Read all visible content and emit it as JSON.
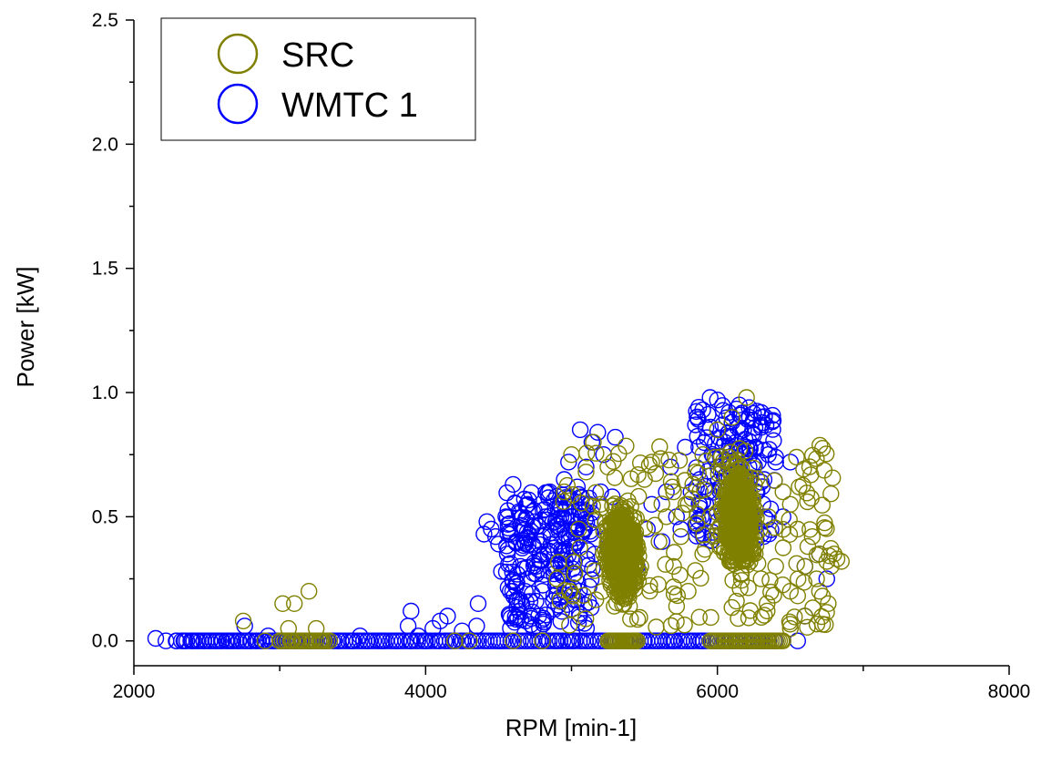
{
  "chart_data": {
    "type": "scatter",
    "xlabel": "RPM [min-1]",
    "ylabel": "Power [kW]",
    "xlim": [
      2000,
      8000
    ],
    "ylim": [
      -0.1,
      2.5
    ],
    "xticks": [
      2000,
      4000,
      6000,
      8000
    ],
    "xtick_labels": [
      "2000",
      "4000",
      "6000",
      "8000"
    ],
    "yticks": [
      0.0,
      0.5,
      1.0,
      1.5,
      2.0,
      2.5
    ],
    "ytick_labels": [
      "0.0",
      "0.5",
      "1.0",
      "1.5",
      "2.0",
      "2.5"
    ],
    "grid": false,
    "legend_position": "top-left",
    "marker": "open-circle",
    "series": [
      {
        "name": "WMTC 1",
        "color": "#0000ff",
        "points": [
          [
            2150,
            0.01
          ],
          [
            2220,
            0.0
          ],
          [
            2290,
            0.0
          ],
          [
            2350,
            0.0
          ],
          [
            2400,
            0.0
          ],
          [
            2440,
            0.0
          ],
          [
            2480,
            0.0
          ],
          [
            2520,
            0.0
          ],
          [
            2560,
            0.0
          ],
          [
            2600,
            0.0
          ],
          [
            2640,
            0.0
          ],
          [
            2680,
            0.0
          ],
          [
            2720,
            0.0
          ],
          [
            2760,
            0.06
          ],
          [
            2800,
            0.0
          ],
          [
            2840,
            0.0
          ],
          [
            2880,
            0.0
          ],
          [
            2920,
            0.02
          ],
          [
            2960,
            0.0
          ],
          [
            3000,
            0.0
          ],
          [
            3050,
            0.0
          ],
          [
            3100,
            0.0
          ],
          [
            3200,
            0.0
          ],
          [
            3300,
            0.0
          ],
          [
            3400,
            0.0
          ],
          [
            3500,
            0.0
          ],
          [
            3550,
            0.02
          ],
          [
            3600,
            0.0
          ],
          [
            3700,
            0.0
          ],
          [
            3800,
            0.0
          ],
          [
            3900,
            0.0
          ],
          [
            3880,
            0.06
          ],
          [
            3900,
            0.12
          ],
          [
            3950,
            0.02
          ],
          [
            4000,
            0.0
          ],
          [
            4050,
            0.05
          ],
          [
            4100,
            0.08
          ],
          [
            4150,
            0.1
          ],
          [
            4200,
            0.0
          ],
          [
            4250,
            0.04
          ],
          [
            4300,
            0.0
          ],
          [
            4350,
            0.06
          ],
          [
            4360,
            0.15
          ],
          [
            4400,
            0.43
          ],
          [
            4420,
            0.48
          ],
          [
            4450,
            0.45
          ],
          [
            4480,
            0.42
          ],
          [
            4500,
            0.39
          ],
          [
            4520,
            0.28
          ],
          [
            4500,
            0.0
          ],
          [
            4550,
            0.5
          ],
          [
            4560,
            0.35
          ],
          [
            4580,
            0.2
          ],
          [
            4600,
            0.63
          ],
          [
            4620,
            0.4
          ],
          [
            4640,
            0.52
          ],
          [
            4650,
            0.3
          ],
          [
            4660,
            0.15
          ],
          [
            4680,
            0.45
          ],
          [
            4700,
            0.25
          ],
          [
            4700,
            0.55
          ],
          [
            4720,
            0.1
          ],
          [
            4740,
            0.38
          ],
          [
            4750,
            0.48
          ],
          [
            4760,
            0.3
          ],
          [
            4780,
            0.05
          ],
          [
            4790,
            0.4
          ],
          [
            4800,
            0.0
          ],
          [
            4800,
            0.2
          ],
          [
            4820,
            0.5
          ],
          [
            4840,
            0.35
          ],
          [
            4850,
            0.6
          ],
          [
            4860,
            0.42
          ],
          [
            4880,
            0.27
          ],
          [
            4900,
            0.4
          ],
          [
            4900,
            0.0
          ],
          [
            4920,
            0.55
          ],
          [
            4950,
            0.65
          ],
          [
            4960,
            0.3
          ],
          [
            4980,
            0.72
          ],
          [
            5000,
            0.5
          ],
          [
            5000,
            0.0
          ],
          [
            5020,
            0.38
          ],
          [
            5040,
            0.62
          ],
          [
            5060,
            0.85
          ],
          [
            5080,
            0.45
          ],
          [
            5100,
            0.7
          ],
          [
            5120,
            0.55
          ],
          [
            5140,
            0.8
          ],
          [
            5160,
            0.35
          ],
          [
            5180,
            0.84
          ],
          [
            5200,
            0.6
          ],
          [
            5200,
            0.0
          ],
          [
            5220,
            0.75
          ],
          [
            5250,
            0.42
          ],
          [
            5280,
            0.58
          ],
          [
            5300,
            0.82
          ],
          [
            5350,
            0.5
          ],
          [
            5400,
            0.0
          ],
          [
            5450,
            0.3
          ],
          [
            5500,
            0.0
          ],
          [
            5520,
            0.45
          ],
          [
            5550,
            0.55
          ],
          [
            5600,
            0.0
          ],
          [
            5620,
            0.4
          ],
          [
            5650,
            0.6
          ],
          [
            5680,
            0.7
          ],
          [
            5700,
            0.0
          ],
          [
            5720,
            0.5
          ],
          [
            5750,
            0.45
          ],
          [
            5780,
            0.78
          ],
          [
            5800,
            0.0
          ],
          [
            5820,
            0.6
          ],
          [
            5850,
            0.87
          ],
          [
            5880,
            0.65
          ],
          [
            5900,
            0.93
          ],
          [
            5900,
            0.0
          ],
          [
            5920,
            0.55
          ],
          [
            5950,
            0.98
          ],
          [
            6000,
            0.97
          ],
          [
            6000,
            0.0
          ],
          [
            6050,
            0.8
          ],
          [
            6080,
            0.92
          ],
          [
            6100,
            0.88
          ],
          [
            6120,
            0.0
          ],
          [
            6150,
            0.95
          ],
          [
            6180,
            0.85
          ],
          [
            6200,
            0.78
          ],
          [
            6200,
            0.0
          ],
          [
            6220,
            0.9
          ],
          [
            6250,
            0.83
          ],
          [
            6280,
            0.72
          ],
          [
            6300,
            0.0
          ],
          [
            6300,
            0.86
          ],
          [
            6320,
            0.65
          ],
          [
            6350,
            0.75
          ],
          [
            6400,
            0.72
          ],
          [
            6400,
            0.0
          ],
          [
            6450,
            0.5
          ],
          [
            6500,
            0.72
          ],
          [
            6550,
            0.0
          ],
          [
            6600,
            0.3
          ],
          [
            6700,
            0.35
          ],
          [
            6750,
            0.25
          ],
          [
            6600,
            0.1
          ]
        ]
      },
      {
        "name": "SRC",
        "color": "#808000",
        "points": [
          [
            2750,
            0.08
          ],
          [
            2900,
            0.0
          ],
          [
            3000,
            0.0
          ],
          [
            3020,
            0.15
          ],
          [
            3060,
            0.05
          ],
          [
            3080,
            0.0
          ],
          [
            3100,
            0.15
          ],
          [
            3120,
            0.0
          ],
          [
            3150,
            0.0
          ],
          [
            3180,
            0.0
          ],
          [
            3200,
            0.2
          ],
          [
            3220,
            0.0
          ],
          [
            3250,
            0.05
          ],
          [
            3280,
            0.0
          ],
          [
            3300,
            0.0
          ],
          [
            4200,
            0.0
          ],
          [
            4300,
            0.0
          ],
          [
            4600,
            0.0
          ],
          [
            4800,
            0.0
          ],
          [
            4900,
            0.25
          ],
          [
            4950,
            0.6
          ],
          [
            5000,
            0.75
          ],
          [
            5050,
            0.45
          ],
          [
            5100,
            0.68
          ],
          [
            5150,
            0.8
          ],
          [
            5200,
            0.55
          ],
          [
            5250,
            0.7
          ],
          [
            5300,
            0.0
          ],
          [
            5350,
            0.0
          ],
          [
            5400,
            0.0
          ],
          [
            5500,
            0.65
          ],
          [
            5550,
            0.72
          ],
          [
            5600,
            0.4
          ],
          [
            5650,
            0.5
          ],
          [
            5700,
            0.3
          ],
          [
            5700,
            0.6
          ],
          [
            5750,
            0.42
          ],
          [
            5800,
            0.55
          ],
          [
            5800,
            0.2
          ],
          [
            5850,
            0.68
          ],
          [
            5900,
            0.35
          ],
          [
            5900,
            0.75
          ],
          [
            5950,
            0.5
          ],
          [
            6000,
            0.85
          ],
          [
            6050,
            0.0
          ],
          [
            6100,
            0.9
          ],
          [
            6150,
            0.0
          ],
          [
            6200,
            0.98
          ],
          [
            6250,
            0.0
          ],
          [
            6300,
            0.25
          ],
          [
            6350,
            0.5
          ],
          [
            6400,
            0.3
          ],
          [
            6450,
            0.6
          ],
          [
            6500,
            0.55
          ],
          [
            6500,
            0.2
          ],
          [
            6550,
            0.45
          ],
          [
            6560,
            0.62
          ],
          [
            6600,
            0.3
          ],
          [
            6600,
            0.1
          ],
          [
            6620,
            0.38
          ],
          [
            6650,
            0.42
          ],
          [
            6680,
            0.25
          ],
          [
            6700,
            0.2
          ],
          [
            6700,
            0.35
          ],
          [
            6720,
            0.18
          ],
          [
            6750,
            0.32
          ],
          [
            6760,
            0.15
          ],
          [
            6780,
            0.3
          ],
          [
            6800,
            0.35
          ],
          [
            6820,
            0.33
          ],
          [
            6850,
            0.32
          ],
          [
            6500,
            0.05
          ],
          [
            6400,
            0.0
          ],
          [
            6450,
            0.0
          ]
        ],
        "clusters": [
          {
            "cx": 5350,
            "cy": 0.35,
            "rx": 190,
            "ry": 0.33
          },
          {
            "cx": 6150,
            "cy": 0.5,
            "rx": 200,
            "ry": 0.35
          }
        ]
      }
    ]
  },
  "legend": {
    "items": [
      {
        "label": "SRC",
        "color": "#808000"
      },
      {
        "label": "WMTC 1",
        "color": "#0000ff"
      }
    ]
  }
}
